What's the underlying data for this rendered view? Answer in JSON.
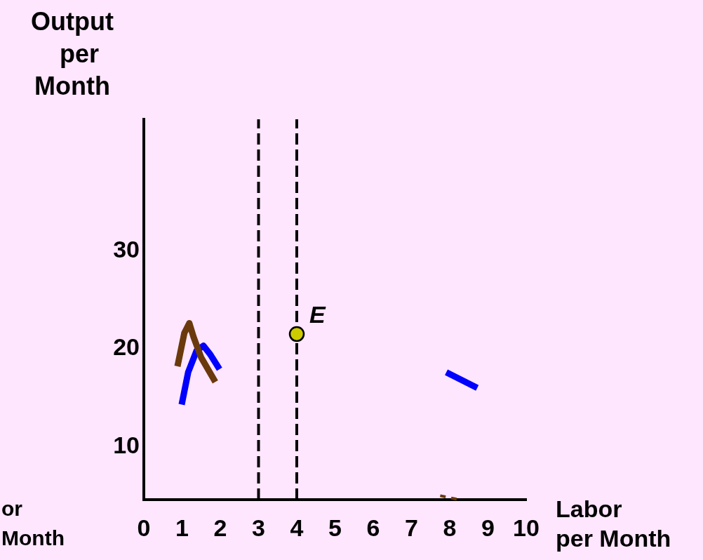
{
  "chart_data": {
    "type": "line",
    "xlabel": "Labor per Month",
    "ylabel": "Output per Month",
    "xlim": [
      0,
      10
    ],
    "ylim": [
      4.6,
      43.4
    ],
    "xticks": [
      0,
      1,
      2,
      3,
      4,
      5,
      6,
      7,
      8,
      9,
      10
    ],
    "yticks": [
      10,
      20,
      30
    ],
    "grid": false,
    "legend": false,
    "marker": "none",
    "series": [
      {
        "color": "#6b3a0c",
        "line_style": "solid",
        "x": [
          0.88,
          1.06,
          1.19,
          1.3,
          1.5,
          1.87
        ],
        "values": [
          18.2,
          21.6,
          22.6,
          21.2,
          19.1,
          16.6
        ]
      },
      {
        "color": "#0000ff",
        "line_style": "solid",
        "x": [
          0.99,
          1.16,
          1.38,
          1.56,
          1.74,
          1.98
        ],
        "values": [
          14.3,
          17.6,
          19.8,
          20.3,
          19.4,
          17.9
        ]
      },
      {
        "color": "#0000ff",
        "line_style": "solid",
        "x": [
          7.91,
          8.72
        ],
        "values": [
          17.6,
          16.0
        ]
      },
      {
        "color": "#6b3a0c",
        "line_style": "dotted",
        "x": [
          7.75,
          8.25
        ],
        "values": [
          5.0,
          4.6
        ]
      },
      {
        "type": "scatter",
        "color": "#cccc00",
        "marker": "circle",
        "x": [
          4
        ],
        "values": [
          21.5
        ]
      }
    ],
    "ref_lines": [
      {
        "axis": "x",
        "value": 3,
        "color": "#000000",
        "line_style": "dashed"
      },
      {
        "axis": "x",
        "value": 4,
        "color": "#000000",
        "line_style": "dashed"
      }
    ],
    "annotations": [
      {
        "text": "E",
        "x": 4,
        "y": 21.5
      },
      "or Month"
    ]
  }
}
